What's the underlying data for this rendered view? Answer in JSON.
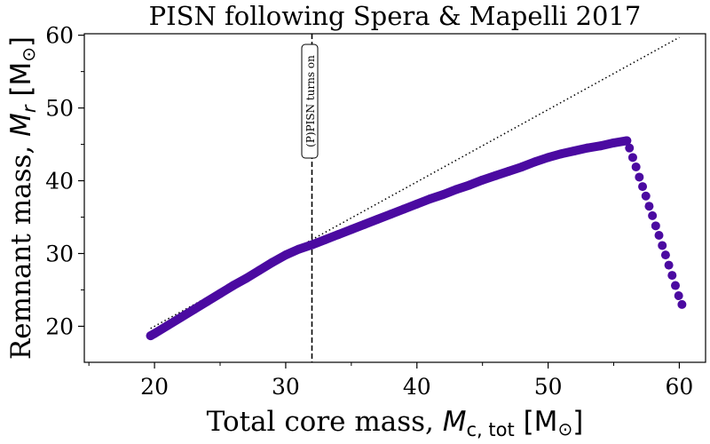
{
  "chart_data": {
    "type": "scatter",
    "title": "PISN following Spera & Mapelli 2017",
    "xlabel": "Total core mass, M_c,tot [M⊙]",
    "xlabel_parts": {
      "prefix": "Total core mass, ",
      "var": "M",
      "sub": "c, tot",
      "unit_open": " [M",
      "unit_sym": "⊙",
      "unit_close": "]"
    },
    "ylabel": "Remnant mass, M_r [M⊙]",
    "ylabel_parts": {
      "prefix": "Remnant mass, ",
      "var": "M",
      "sub": "r",
      "unit_open": " [M",
      "unit_sym": "⊙",
      "unit_close": "]"
    },
    "xlim": [
      14.65,
      62.0
    ],
    "ylim": [
      15.05,
      60.2
    ],
    "xticks": [
      20,
      30,
      40,
      50,
      60
    ],
    "yticks": [
      20,
      30,
      40,
      50,
      60
    ],
    "xminor": [
      15,
      25,
      35,
      45,
      55
    ],
    "yminor": [
      25,
      35,
      45,
      55
    ],
    "grid": false,
    "marker_color": "#4b0aa1",
    "series": [
      {
        "points": [
          [
            19.7,
            18.7
          ],
          [
            20,
            19.0
          ],
          [
            21,
            20.1
          ],
          [
            22,
            21.2
          ],
          [
            23,
            22.3
          ],
          [
            24,
            23.4
          ],
          [
            25,
            24.5
          ],
          [
            26,
            25.6
          ],
          [
            27,
            26.6
          ],
          [
            28,
            27.7
          ],
          [
            29,
            28.8
          ],
          [
            30,
            29.8
          ],
          [
            31,
            30.6
          ],
          [
            32,
            31.2
          ],
          [
            33,
            31.9
          ],
          [
            34,
            32.6
          ],
          [
            35,
            33.3
          ],
          [
            36,
            34.0
          ],
          [
            37,
            34.7
          ],
          [
            38,
            35.4
          ],
          [
            39,
            36.1
          ],
          [
            40,
            36.8
          ],
          [
            41,
            37.5
          ],
          [
            42,
            38.1
          ],
          [
            43,
            38.8
          ],
          [
            44,
            39.4
          ],
          [
            45,
            40.1
          ],
          [
            46,
            40.7
          ],
          [
            47,
            41.3
          ],
          [
            48,
            41.9
          ],
          [
            49,
            42.6
          ],
          [
            50,
            43.2
          ],
          [
            51,
            43.7
          ],
          [
            52,
            44.1
          ],
          [
            53,
            44.5
          ],
          [
            54,
            44.8
          ],
          [
            55,
            45.2
          ],
          [
            56,
            45.5
          ]
        ],
        "drop_points": [
          [
            56.2,
            44.5
          ],
          [
            56.45,
            43.2
          ],
          [
            56.7,
            41.9
          ],
          [
            56.95,
            40.5
          ],
          [
            57.2,
            39.2
          ],
          [
            57.45,
            37.9
          ],
          [
            57.7,
            36.5
          ],
          [
            57.95,
            35.2
          ],
          [
            58.2,
            33.8
          ],
          [
            58.45,
            32.5
          ],
          [
            58.7,
            31.1
          ],
          [
            58.95,
            29.8
          ],
          [
            59.2,
            28.4
          ],
          [
            59.45,
            27.0
          ],
          [
            59.7,
            25.6
          ],
          [
            59.95,
            24.2
          ],
          [
            60.2,
            23.0
          ]
        ]
      }
    ],
    "reference_line": {
      "style": "dotted",
      "from": [
        19.7,
        19.7
      ],
      "to": [
        60,
        59.7
      ]
    },
    "vline": {
      "x": 32,
      "style": "dashed",
      "label": "(P)PISN turns on"
    }
  }
}
